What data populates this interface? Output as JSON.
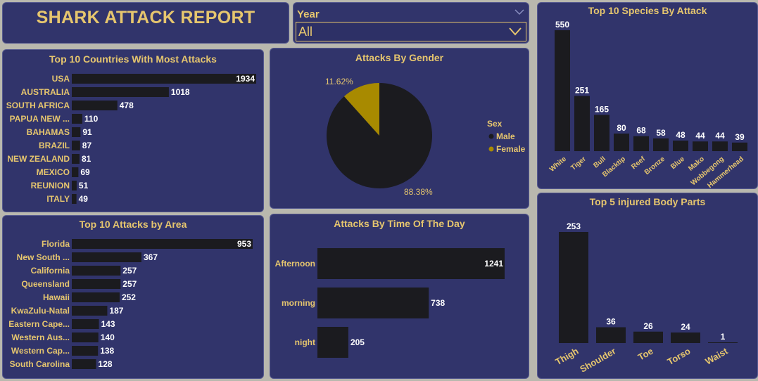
{
  "report": {
    "title": "SHARK ATTACK  REPORT"
  },
  "slicer": {
    "label": "Year",
    "value": "All"
  },
  "colors": {
    "gold": "#e6c66e",
    "panel": "#31346b",
    "bar": "#1b1b1f",
    "female": "#a88a00",
    "male": "#1b1b1f"
  },
  "chart_data": [
    {
      "id": "countries",
      "type": "bar",
      "orientation": "horizontal",
      "title": "Top 10 Countries With Most Attacks",
      "categories": [
        "USA",
        "AUSTRALIA",
        "SOUTH AFRICA",
        "PAPUA NEW ...",
        "BAHAMAS",
        "BRAZIL",
        "NEW ZEALAND",
        "MEXICO",
        "REUNION",
        "ITALY"
      ],
      "values": [
        1934,
        1018,
        478,
        110,
        91,
        87,
        81,
        69,
        51,
        49
      ],
      "xlim": [
        0,
        1934
      ]
    },
    {
      "id": "areas",
      "type": "bar",
      "orientation": "horizontal",
      "title": "Top 10 Attacks by Area",
      "categories": [
        "Florida",
        "New South ...",
        "California",
        "Queensland",
        "Hawaii",
        "KwaZulu-Natal",
        "Eastern Cape...",
        "Western Aus...",
        "Western Cap...",
        "South Carolina"
      ],
      "values": [
        953,
        367,
        257,
        257,
        252,
        187,
        143,
        140,
        138,
        128
      ],
      "xlim": [
        0,
        953
      ]
    },
    {
      "id": "gender",
      "type": "pie",
      "title": "Attacks By Gender",
      "legend_title": "Sex",
      "slices": [
        {
          "name": "Male",
          "percent": 88.38,
          "label": "88.38%"
        },
        {
          "name": "Female",
          "percent": 11.62,
          "label": "11.62%"
        }
      ]
    },
    {
      "id": "time",
      "type": "bar",
      "orientation": "horizontal",
      "title": "Attacks By Time Of The Day",
      "categories": [
        "Afternoon",
        "morning",
        "night"
      ],
      "values": [
        1241,
        738,
        205
      ],
      "xlim": [
        0,
        1241
      ]
    },
    {
      "id": "species",
      "type": "bar",
      "orientation": "vertical",
      "title": "Top 10 Species By Attack",
      "categories": [
        "White",
        "Tiger",
        "Bull",
        "Blacktip",
        "Reef",
        "Bronze",
        "Blue",
        "Mako",
        "Wobbegong",
        "Hammerhead"
      ],
      "values": [
        550,
        251,
        165,
        80,
        68,
        58,
        48,
        44,
        44,
        39
      ],
      "ylim": [
        0,
        550
      ]
    },
    {
      "id": "bodyparts",
      "type": "bar",
      "orientation": "vertical",
      "title": "Top 5 injured Body Parts",
      "categories": [
        "Thigh",
        "Shoulder",
        "Toe",
        "Torso",
        "Waist"
      ],
      "values": [
        253,
        36,
        26,
        24,
        1
      ],
      "ylim": [
        0,
        253
      ]
    }
  ]
}
